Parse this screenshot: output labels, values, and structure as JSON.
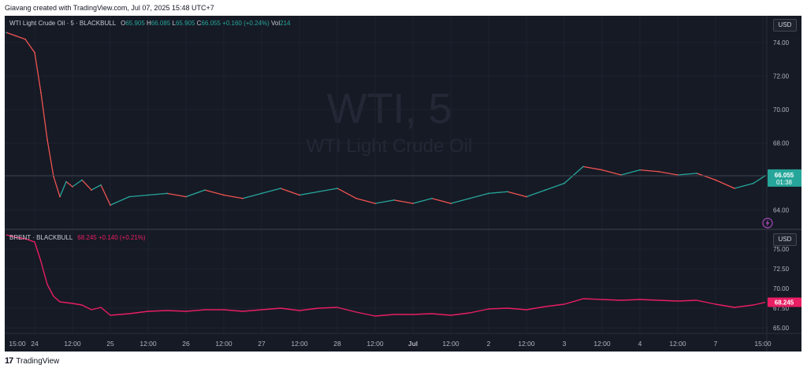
{
  "header": {
    "attribution": "Giavang created with TradingView.com, Jul 07, 2025 15:48 UTC+7"
  },
  "footer": {
    "brand": "TradingView",
    "brand_icon": "tradingview-logo-icon"
  },
  "colors": {
    "background": "#161a25",
    "up": "#26a69a",
    "down": "#ef5350",
    "brent": "#e91e63",
    "text": "#b2b5be",
    "grid": "#1f2330"
  },
  "wti": {
    "legend_name": "WTI Light Crude Oil · 5 · BLACKBULL",
    "o_label": "O",
    "o": "65.905",
    "h_label": "H",
    "h": "66.085",
    "l_label": "L",
    "l": "65.905",
    "c_label": "C",
    "c": "66.055",
    "change": "+0.160 (+0.24%)",
    "vol_label": "Vol",
    "vol": "214",
    "watermark_symbol": "WTI, 5",
    "watermark_name": "WTI Light Crude Oil",
    "currency": "USD",
    "last_price": "66.055",
    "countdown": "01:38",
    "lightning_icon": "lightning-icon"
  },
  "brent": {
    "legend_name": "BRENT · BLACKBULL",
    "value": "68.245",
    "change": "+0.140 (+0.21%)",
    "currency": "USD",
    "last_price": "68.245"
  },
  "chart_data": [
    {
      "type": "line",
      "series": [
        {
          "name": "WTI Light Crude Oil"
        }
      ],
      "x_tick_labels": [
        "15:00",
        "24",
        "12:00",
        "25",
        "12:00",
        "26",
        "12:00",
        "27",
        "12:00",
        "28",
        "12:00",
        "Jul",
        "12:00",
        "2",
        "12:00",
        "3",
        "12:00",
        "4",
        "12:00",
        "7",
        "15:00"
      ],
      "y_ticks": [
        64.0,
        66.0,
        68.0,
        70.0,
        72.0,
        74.0
      ],
      "ylim": [
        62.9,
        75.6
      ],
      "x": [
        "Jun 23 15:00",
        "Jun 23 18:00",
        "Jun 23 21:00",
        "Jun 24 00:00",
        "Jun 24 02:00",
        "Jun 24 04:00",
        "Jun 24 06:00",
        "Jun 24 08:00",
        "Jun 24 10:00",
        "Jun 24 12:00",
        "Jun 24 15:00",
        "Jun 24 18:00",
        "Jun 24 21:00",
        "Jun 25 00:00",
        "Jun 25 06:00",
        "Jun 25 12:00",
        "Jun 25 18:00",
        "Jun 26 00:00",
        "Jun 26 06:00",
        "Jun 26 12:00",
        "Jun 26 18:00",
        "Jun 27 00:00",
        "Jun 27 06:00",
        "Jun 27 12:00",
        "Jun 27 18:00",
        "Jun 28 00:00",
        "Jun 28 06:00",
        "Jun 28 12:00",
        "Jun 28 18:00",
        "Jul 1 00:00",
        "Jul 1 06:00",
        "Jul 1 12:00",
        "Jul 1 18:00",
        "Jul 2 00:00",
        "Jul 2 06:00",
        "Jul 2 12:00",
        "Jul 2 18:00",
        "Jul 3 00:00",
        "Jul 3 06:00",
        "Jul 3 12:00",
        "Jul 3 18:00",
        "Jul 4 00:00",
        "Jul 4 06:00",
        "Jul 4 12:00",
        "Jul 4 18:00",
        "Jul 7 00:00",
        "Jul 7 06:00",
        "Jul 7 12:00",
        "Jul 7 15:45"
      ],
      "values": [
        74.6,
        74.4,
        74.2,
        73.4,
        71.0,
        68.2,
        66.0,
        64.8,
        65.7,
        65.4,
        65.8,
        65.2,
        65.5,
        64.3,
        64.8,
        64.9,
        65.0,
        64.8,
        65.2,
        64.9,
        64.7,
        65.0,
        65.3,
        64.9,
        65.1,
        65.3,
        64.7,
        64.4,
        64.6,
        64.4,
        64.7,
        64.4,
        64.7,
        65.0,
        65.1,
        64.8,
        65.2,
        65.6,
        66.6,
        66.4,
        66.1,
        66.4,
        66.3,
        66.1,
        66.2,
        65.8,
        65.3,
        65.6,
        66.055
      ]
    },
    {
      "type": "line",
      "series": [
        {
          "name": "BRENT"
        }
      ],
      "x_tick_labels": [],
      "y_ticks": [
        65.0,
        67.5,
        70.0,
        72.5,
        75.0
      ],
      "ylim": [
        64.4,
        77.4
      ],
      "x": [
        "Jun 23 15:00",
        "Jun 23 18:00",
        "Jun 23 21:00",
        "Jun 24 00:00",
        "Jun 24 02:00",
        "Jun 24 04:00",
        "Jun 24 06:00",
        "Jun 24 08:00",
        "Jun 24 10:00",
        "Jun 24 12:00",
        "Jun 24 15:00",
        "Jun 24 18:00",
        "Jun 24 21:00",
        "Jun 25 00:00",
        "Jun 25 06:00",
        "Jun 25 12:00",
        "Jun 25 18:00",
        "Jun 26 00:00",
        "Jun 26 06:00",
        "Jun 26 12:00",
        "Jun 26 18:00",
        "Jun 27 00:00",
        "Jun 27 06:00",
        "Jun 27 12:00",
        "Jun 27 18:00",
        "Jun 28 00:00",
        "Jun 28 06:00",
        "Jun 28 12:00",
        "Jun 28 18:00",
        "Jul 1 00:00",
        "Jul 1 06:00",
        "Jul 1 12:00",
        "Jul 1 18:00",
        "Jul 2 00:00",
        "Jul 2 06:00",
        "Jul 2 12:00",
        "Jul 2 18:00",
        "Jul 3 00:00",
        "Jul 3 06:00",
        "Jul 3 12:00",
        "Jul 3 18:00",
        "Jul 4 00:00",
        "Jul 4 06:00",
        "Jul 4 12:00",
        "Jul 4 18:00",
        "Jul 7 00:00",
        "Jul 7 06:00",
        "Jul 7 12:00",
        "Jul 7 15:45"
      ],
      "values": [
        76.8,
        76.5,
        76.3,
        75.9,
        73.4,
        70.5,
        69.0,
        68.3,
        68.2,
        68.1,
        67.9,
        67.3,
        67.6,
        66.6,
        66.8,
        67.1,
        67.2,
        67.1,
        67.3,
        67.3,
        67.1,
        67.3,
        67.5,
        67.2,
        67.5,
        67.6,
        67.0,
        66.5,
        66.7,
        66.7,
        66.8,
        66.6,
        66.9,
        67.4,
        67.5,
        67.3,
        67.7,
        68.0,
        68.7,
        68.6,
        68.5,
        68.6,
        68.5,
        68.4,
        68.5,
        68.0,
        67.6,
        67.9,
        68.245
      ]
    }
  ]
}
